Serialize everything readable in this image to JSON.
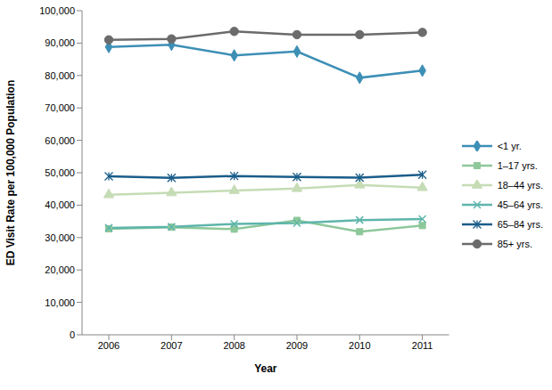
{
  "chart_data": {
    "type": "line",
    "x_label": "Year",
    "y_label": "ED Visit Rate per 100,000  Population",
    "categories": [
      "2006",
      "2007",
      "2008",
      "2009",
      "2010",
      "2011"
    ],
    "series": [
      {
        "name": "<1 yr.",
        "color": "#3d8fb5",
        "marker": "diamond",
        "values": [
          88800,
          89500,
          86200,
          87400,
          79300,
          81500
        ]
      },
      {
        "name": "1–17 yrs.",
        "color": "#8ec89a",
        "marker": "square",
        "values": [
          32700,
          33200,
          32600,
          35300,
          31800,
          33700
        ]
      },
      {
        "name": "18–44 yrs.",
        "color": "#c5dcb5",
        "marker": "triangle",
        "values": [
          43200,
          43800,
          44500,
          45100,
          46200,
          45400
        ]
      },
      {
        "name": "45–64 yrs.",
        "color": "#5eb5ab",
        "marker": "x",
        "values": [
          33000,
          33300,
          34200,
          34500,
          35400,
          35700
        ]
      },
      {
        "name": "65–84 yrs.",
        "color": "#1a5d8a",
        "marker": "star",
        "values": [
          48900,
          48400,
          49000,
          48700,
          48500,
          49400
        ]
      },
      {
        "name": "85+ yrs.",
        "color": "#6b6b6b",
        "marker": "circle",
        "values": [
          91000,
          91300,
          93600,
          92600,
          92600,
          93300
        ]
      }
    ],
    "ylim": [
      0,
      100000
    ],
    "yticks": [
      0,
      {
        "value": 10000,
        "label": "10,000"
      },
      {
        "value": 20000,
        "label": "20,000"
      },
      {
        "value": 30000,
        "label": "30,000"
      },
      {
        "value": 40000,
        "label": "40,000"
      },
      {
        "value": 50000,
        "label": "50,000"
      },
      {
        "value": 60000,
        "label": "60,000"
      },
      {
        "value": 70000,
        "label": "70,000"
      },
      {
        "value": 80000,
        "label": "80,000"
      },
      {
        "value": 90000,
        "label": "90,000"
      },
      {
        "value": 100000,
        "label": "100,000"
      }
    ],
    "grid": false,
    "legend": "right"
  }
}
